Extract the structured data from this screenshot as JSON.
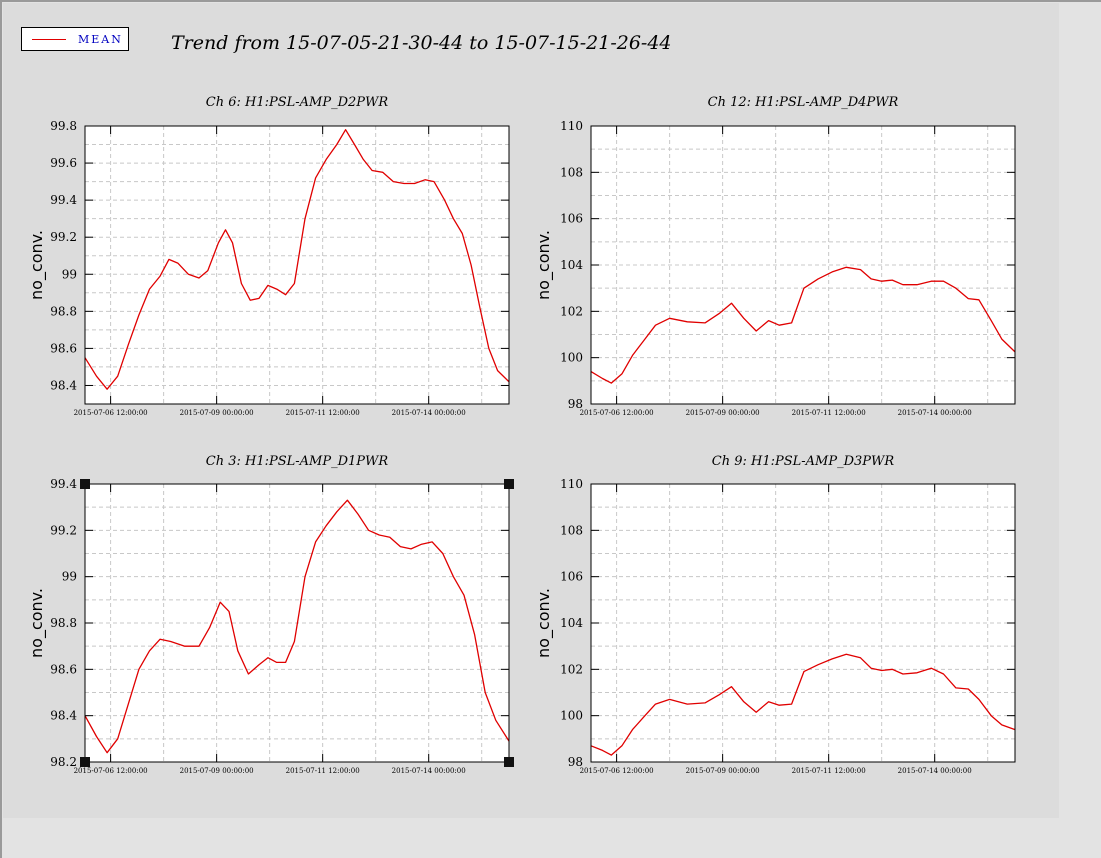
{
  "title": "Trend from 15-07-05-21-30-44 to 15-07-15-21-26-44",
  "legend": {
    "label": "MEAN",
    "color": "#e00000"
  },
  "colors": {
    "line": "#e00000",
    "grid": "#c8c8c8",
    "background": "#dcdcdc"
  },
  "chart_data": [
    {
      "type": "line",
      "title": "Ch 6: H1:PSL-AMP_D2PWR",
      "ylabel": "no_conv.",
      "grid": true,
      "xlim": [
        "2015-07-05 21:30:44",
        "2015-07-15 21:26:44"
      ],
      "ylim": [
        98.3,
        99.8
      ],
      "yticks": [
        98.4,
        98.6,
        98.8,
        99,
        99.2,
        99.4,
        99.6,
        99.8
      ],
      "xticks": [
        {
          "t": "2015-07-06 12:00:00",
          "label": "2015-07-06 12:00:00"
        },
        {
          "t": "2015-07-09 00:00:00",
          "label": "2015-07-09 00:00:00"
        },
        {
          "t": "2015-07-11 12:00:00",
          "label": "2015-07-11 12:00:00"
        },
        {
          "t": "2015-07-14 00:00:00",
          "label": "2015-07-14 00:00:00"
        }
      ],
      "series": [
        {
          "name": "MEAN",
          "points": [
            [
              "2015-07-05 21:30:44",
              98.55
            ],
            [
              "2015-07-06 04:00:00",
              98.45
            ],
            [
              "2015-07-06 10:00:00",
              98.38
            ],
            [
              "2015-07-06 16:00:00",
              98.45
            ],
            [
              "2015-07-06 22:00:00",
              98.62
            ],
            [
              "2015-07-07 04:00:00",
              98.78
            ],
            [
              "2015-07-07 10:00:00",
              98.92
            ],
            [
              "2015-07-07 16:00:00",
              98.99
            ],
            [
              "2015-07-07 21:00:00",
              99.08
            ],
            [
              "2015-07-08 02:00:00",
              99.06
            ],
            [
              "2015-07-08 08:00:00",
              99.0
            ],
            [
              "2015-07-08 14:00:00",
              98.98
            ],
            [
              "2015-07-08 19:00:00",
              99.02
            ],
            [
              "2015-07-09 01:00:00",
              99.17
            ],
            [
              "2015-07-09 05:00:00",
              99.24
            ],
            [
              "2015-07-09 09:00:00",
              99.17
            ],
            [
              "2015-07-09 14:00:00",
              98.95
            ],
            [
              "2015-07-09 19:00:00",
              98.86
            ],
            [
              "2015-07-10 00:00:00",
              98.87
            ],
            [
              "2015-07-10 05:00:00",
              98.94
            ],
            [
              "2015-07-10 10:00:00",
              98.92
            ],
            [
              "2015-07-10 15:00:00",
              98.89
            ],
            [
              "2015-07-10 20:00:00",
              98.95
            ],
            [
              "2015-07-11 02:00:00",
              99.3
            ],
            [
              "2015-07-11 08:00:00",
              99.52
            ],
            [
              "2015-07-11 14:00:00",
              99.62
            ],
            [
              "2015-07-11 20:00:00",
              99.7
            ],
            [
              "2015-07-12 01:00:00",
              99.78
            ],
            [
              "2015-07-12 06:00:00",
              99.7
            ],
            [
              "2015-07-12 11:00:00",
              99.62
            ],
            [
              "2015-07-12 16:00:00",
              99.56
            ],
            [
              "2015-07-12 22:00:00",
              99.55
            ],
            [
              "2015-07-13 04:00:00",
              99.5
            ],
            [
              "2015-07-13 10:00:00",
              99.49
            ],
            [
              "2015-07-13 16:00:00",
              99.49
            ],
            [
              "2015-07-13 22:00:00",
              99.51
            ],
            [
              "2015-07-14 03:00:00",
              99.5
            ],
            [
              "2015-07-14 09:00:00",
              99.4
            ],
            [
              "2015-07-14 14:00:00",
              99.3
            ],
            [
              "2015-07-14 19:00:00",
              99.22
            ],
            [
              "2015-07-15 00:00:00",
              99.05
            ],
            [
              "2015-07-15 05:00:00",
              98.82
            ],
            [
              "2015-07-15 10:00:00",
              98.6
            ],
            [
              "2015-07-15 15:00:00",
              98.48
            ],
            [
              "2015-07-15 21:26:44",
              98.42
            ]
          ]
        }
      ]
    },
    {
      "type": "line",
      "title": "Ch 12: H1:PSL-AMP_D4PWR",
      "ylabel": "no_conv.",
      "grid": true,
      "xlim": [
        "2015-07-05 21:30:44",
        "2015-07-15 21:26:44"
      ],
      "ylim": [
        98,
        110
      ],
      "yticks": [
        98,
        100,
        102,
        104,
        106,
        108,
        110
      ],
      "xticks": [
        {
          "t": "2015-07-06 12:00:00",
          "label": "2015-07-06 12:00:00"
        },
        {
          "t": "2015-07-09 00:00:00",
          "label": "2015-07-09 00:00:00"
        },
        {
          "t": "2015-07-11 12:00:00",
          "label": "2015-07-11 12:00:00"
        },
        {
          "t": "2015-07-14 00:00:00",
          "label": "2015-07-14 00:00:00"
        }
      ],
      "series": [
        {
          "name": "MEAN",
          "points": [
            [
              "2015-07-05 21:30:44",
              99.4
            ],
            [
              "2015-07-06 04:00:00",
              99.1
            ],
            [
              "2015-07-06 09:00:00",
              98.9
            ],
            [
              "2015-07-06 15:00:00",
              99.3
            ],
            [
              "2015-07-06 21:00:00",
              100.1
            ],
            [
              "2015-07-07 04:00:00",
              100.8
            ],
            [
              "2015-07-07 10:00:00",
              101.4
            ],
            [
              "2015-07-07 18:00:00",
              101.7
            ],
            [
              "2015-07-08 04:00:00",
              101.55
            ],
            [
              "2015-07-08 14:00:00",
              101.5
            ],
            [
              "2015-07-08 22:00:00",
              101.9
            ],
            [
              "2015-07-09 05:00:00",
              102.35
            ],
            [
              "2015-07-09 12:00:00",
              101.7
            ],
            [
              "2015-07-09 19:00:00",
              101.15
            ],
            [
              "2015-07-10 02:00:00",
              101.6
            ],
            [
              "2015-07-10 08:00:00",
              101.4
            ],
            [
              "2015-07-10 15:00:00",
              101.5
            ],
            [
              "2015-07-10 22:00:00",
              103.0
            ],
            [
              "2015-07-11 06:00:00",
              103.4
            ],
            [
              "2015-07-11 14:00:00",
              103.7
            ],
            [
              "2015-07-11 22:00:00",
              103.9
            ],
            [
              "2015-07-12 06:00:00",
              103.8
            ],
            [
              "2015-07-12 12:00:00",
              103.4
            ],
            [
              "2015-07-12 18:00:00",
              103.3
            ],
            [
              "2015-07-13 00:00:00",
              103.35
            ],
            [
              "2015-07-13 06:00:00",
              103.15
            ],
            [
              "2015-07-13 14:00:00",
              103.15
            ],
            [
              "2015-07-13 22:00:00",
              103.3
            ],
            [
              "2015-07-14 05:00:00",
              103.3
            ],
            [
              "2015-07-14 12:00:00",
              103.0
            ],
            [
              "2015-07-14 19:00:00",
              102.55
            ],
            [
              "2015-07-15 01:00:00",
              102.5
            ],
            [
              "2015-07-15 08:00:00",
              101.6
            ],
            [
              "2015-07-15 14:00:00",
              100.8
            ],
            [
              "2015-07-15 21:26:44",
              100.25
            ]
          ]
        }
      ]
    },
    {
      "type": "line",
      "title": "Ch 3: H1:PSL-AMP_D1PWR",
      "ylabel": "no_conv.",
      "grid": true,
      "xlim": [
        "2015-07-05 21:30:44",
        "2015-07-15 21:26:44"
      ],
      "ylim": [
        98.2,
        99.4
      ],
      "yticks": [
        98.2,
        98.4,
        98.6,
        98.8,
        99,
        99.2,
        99.4
      ],
      "xticks": [
        {
          "t": "2015-07-06 12:00:00",
          "label": "2015-07-06 12:00:00"
        },
        {
          "t": "2015-07-09 00:00:00",
          "label": "2015-07-09 00:00:00"
        },
        {
          "t": "2015-07-11 12:00:00",
          "label": "2015-07-11 12:00:00"
        },
        {
          "t": "2015-07-14 00:00:00",
          "label": "2015-07-14 00:00:00"
        }
      ],
      "series": [
        {
          "name": "MEAN",
          "points": [
            [
              "2015-07-05 21:30:44",
              98.4
            ],
            [
              "2015-07-06 04:00:00",
              98.31
            ],
            [
              "2015-07-06 10:00:00",
              98.24
            ],
            [
              "2015-07-06 16:00:00",
              98.3
            ],
            [
              "2015-07-06 22:00:00",
              98.45
            ],
            [
              "2015-07-07 04:00:00",
              98.6
            ],
            [
              "2015-07-07 10:00:00",
              98.68
            ],
            [
              "2015-07-07 16:00:00",
              98.73
            ],
            [
              "2015-07-07 22:00:00",
              98.72
            ],
            [
              "2015-07-08 06:00:00",
              98.7
            ],
            [
              "2015-07-08 14:00:00",
              98.7
            ],
            [
              "2015-07-08 20:00:00",
              98.78
            ],
            [
              "2015-07-09 02:00:00",
              98.89
            ],
            [
              "2015-07-09 07:00:00",
              98.85
            ],
            [
              "2015-07-09 12:00:00",
              98.68
            ],
            [
              "2015-07-09 18:00:00",
              98.58
            ],
            [
              "2015-07-10 00:00:00",
              98.62
            ],
            [
              "2015-07-10 05:00:00",
              98.65
            ],
            [
              "2015-07-10 10:00:00",
              98.63
            ],
            [
              "2015-07-10 15:00:00",
              98.63
            ],
            [
              "2015-07-10 20:00:00",
              98.72
            ],
            [
              "2015-07-11 02:00:00",
              99.0
            ],
            [
              "2015-07-11 08:00:00",
              99.15
            ],
            [
              "2015-07-11 14:00:00",
              99.22
            ],
            [
              "2015-07-11 20:00:00",
              99.28
            ],
            [
              "2015-07-12 02:00:00",
              99.33
            ],
            [
              "2015-07-12 08:00:00",
              99.27
            ],
            [
              "2015-07-12 14:00:00",
              99.2
            ],
            [
              "2015-07-12 20:00:00",
              99.18
            ],
            [
              "2015-07-13 02:00:00",
              99.17
            ],
            [
              "2015-07-13 08:00:00",
              99.13
            ],
            [
              "2015-07-13 14:00:00",
              99.12
            ],
            [
              "2015-07-13 20:00:00",
              99.14
            ],
            [
              "2015-07-14 02:00:00",
              99.15
            ],
            [
              "2015-07-14 08:00:00",
              99.1
            ],
            [
              "2015-07-14 14:00:00",
              99.0
            ],
            [
              "2015-07-14 20:00:00",
              98.92
            ],
            [
              "2015-07-15 02:00:00",
              98.75
            ],
            [
              "2015-07-15 08:00:00",
              98.5
            ],
            [
              "2015-07-15 14:00:00",
              98.38
            ],
            [
              "2015-07-15 21:26:44",
              98.29
            ]
          ]
        }
      ]
    },
    {
      "type": "line",
      "title": "Ch 9: H1:PSL-AMP_D3PWR",
      "ylabel": "no_conv.",
      "grid": true,
      "xlim": [
        "2015-07-05 21:30:44",
        "2015-07-15 21:26:44"
      ],
      "ylim": [
        98,
        110
      ],
      "yticks": [
        98,
        100,
        102,
        104,
        106,
        108,
        110
      ],
      "xticks": [
        {
          "t": "2015-07-06 12:00:00",
          "label": "2015-07-06 12:00:00"
        },
        {
          "t": "2015-07-09 00:00:00",
          "label": "2015-07-09 00:00:00"
        },
        {
          "t": "2015-07-11 12:00:00",
          "label": "2015-07-11 12:00:00"
        },
        {
          "t": "2015-07-14 00:00:00",
          "label": "2015-07-14 00:00:00"
        }
      ],
      "series": [
        {
          "name": "MEAN",
          "points": [
            [
              "2015-07-05 21:30:44",
              98.7
            ],
            [
              "2015-07-06 04:00:00",
              98.5
            ],
            [
              "2015-07-06 09:00:00",
              98.3
            ],
            [
              "2015-07-06 15:00:00",
              98.7
            ],
            [
              "2015-07-06 21:00:00",
              99.4
            ],
            [
              "2015-07-07 04:00:00",
              100.0
            ],
            [
              "2015-07-07 10:00:00",
              100.5
            ],
            [
              "2015-07-07 18:00:00",
              100.7
            ],
            [
              "2015-07-08 04:00:00",
              100.5
            ],
            [
              "2015-07-08 14:00:00",
              100.55
            ],
            [
              "2015-07-08 22:00:00",
              100.9
            ],
            [
              "2015-07-09 05:00:00",
              101.25
            ],
            [
              "2015-07-09 12:00:00",
              100.6
            ],
            [
              "2015-07-09 19:00:00",
              100.15
            ],
            [
              "2015-07-10 02:00:00",
              100.6
            ],
            [
              "2015-07-10 08:00:00",
              100.45
            ],
            [
              "2015-07-10 15:00:00",
              100.5
            ],
            [
              "2015-07-10 22:00:00",
              101.9
            ],
            [
              "2015-07-11 06:00:00",
              102.2
            ],
            [
              "2015-07-11 14:00:00",
              102.45
            ],
            [
              "2015-07-11 22:00:00",
              102.65
            ],
            [
              "2015-07-12 06:00:00",
              102.5
            ],
            [
              "2015-07-12 12:00:00",
              102.05
            ],
            [
              "2015-07-12 18:00:00",
              101.95
            ],
            [
              "2015-07-13 00:00:00",
              102.0
            ],
            [
              "2015-07-13 06:00:00",
              101.8
            ],
            [
              "2015-07-13 14:00:00",
              101.85
            ],
            [
              "2015-07-13 22:00:00",
              102.05
            ],
            [
              "2015-07-14 05:00:00",
              101.8
            ],
            [
              "2015-07-14 12:00:00",
              101.2
            ],
            [
              "2015-07-14 19:00:00",
              101.15
            ],
            [
              "2015-07-15 01:00:00",
              100.7
            ],
            [
              "2015-07-15 08:00:00",
              100.0
            ],
            [
              "2015-07-15 14:00:00",
              99.6
            ],
            [
              "2015-07-15 21:26:44",
              99.4
            ]
          ]
        }
      ]
    }
  ]
}
